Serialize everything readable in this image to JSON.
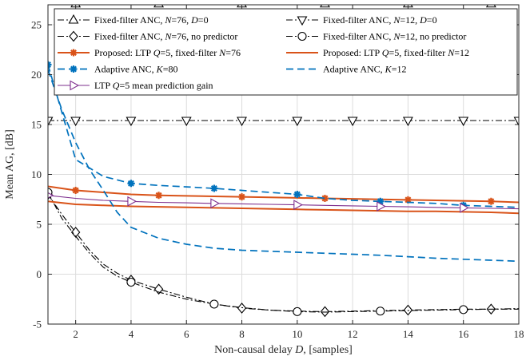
{
  "chart_data": {
    "type": "line",
    "xlabel": "Non-causal delay D, [samples]",
    "ylabel": "Mean AG, [dB]",
    "xlim": [
      1,
      18
    ],
    "ylim": [
      -5,
      27
    ],
    "xticks": [
      2,
      4,
      6,
      8,
      10,
      12,
      14,
      16,
      18
    ],
    "yticks": [
      -5,
      0,
      5,
      10,
      15,
      20,
      25
    ],
    "grid": true,
    "legend_position": "top",
    "series": [
      {
        "name": "Fixed-filter ANC, N=76, D=0",
        "color": "#000000",
        "dash": "dashdot",
        "marker": "triangle-up",
        "x": [
          1,
          18
        ],
        "y": [
          27.1,
          27.1
        ],
        "marker_x": [
          2,
          5,
          8,
          11,
          14,
          17
        ]
      },
      {
        "name": "Fixed-filter ANC,  N=12, D=0",
        "color": "#000000",
        "dash": "dashdot",
        "marker": "triangle-down",
        "x": [
          1,
          18
        ],
        "y": [
          15.4,
          15.4
        ],
        "marker_x": [
          1,
          2,
          4,
          6,
          8,
          10,
          12,
          14,
          16,
          18
        ]
      },
      {
        "name": "Fixed-filter ANC, N=76, no predictor",
        "color": "#000000",
        "dash": "dashdot",
        "marker": "diamond",
        "x": [
          1,
          1.5,
          2,
          2.5,
          3,
          3.5,
          4,
          5,
          6,
          7,
          8,
          9,
          10,
          11,
          12,
          13,
          14,
          15,
          16,
          17,
          18
        ],
        "y": [
          8.0,
          6.0,
          4.2,
          2.4,
          1.0,
          0.1,
          -0.6,
          -1.5,
          -2.3,
          -3.0,
          -3.4,
          -3.6,
          -3.7,
          -3.75,
          -3.7,
          -3.65,
          -3.6,
          -3.55,
          -3.5,
          -3.5,
          -3.45
        ],
        "marker_x": [
          1,
          2,
          4,
          5,
          8,
          11,
          14,
          17
        ]
      },
      {
        "name": "Fixed-filter ANC,  N=12, no predictor",
        "color": "#000000",
        "dash": "dashdot",
        "marker": "circle",
        "x": [
          1,
          1.5,
          2,
          2.5,
          3,
          3.5,
          4,
          5,
          6,
          7,
          8,
          9,
          10,
          11,
          12,
          13,
          14,
          15,
          16,
          17,
          18
        ],
        "y": [
          8.2,
          5.6,
          3.8,
          2.1,
          0.7,
          -0.2,
          -0.8,
          -1.8,
          -2.5,
          -3.0,
          -3.35,
          -3.6,
          -3.75,
          -3.8,
          -3.75,
          -3.7,
          -3.65,
          -3.6,
          -3.55,
          -3.5,
          -3.5
        ],
        "marker_x": [
          1,
          4,
          7,
          10,
          13,
          16
        ]
      },
      {
        "name": "Proposed: LTP Q=5, fixed-filter N=76",
        "color": "#d95319",
        "dash": "solid",
        "marker": "asterisk",
        "x": [
          1,
          2,
          3,
          4,
          5,
          6,
          7,
          8,
          9,
          10,
          11,
          12,
          13,
          14,
          15,
          16,
          17,
          18
        ],
        "y": [
          8.8,
          8.4,
          8.2,
          8.0,
          7.9,
          7.85,
          7.8,
          7.75,
          7.7,
          7.65,
          7.6,
          7.55,
          7.5,
          7.45,
          7.4,
          7.35,
          7.3,
          7.2
        ],
        "marker_x": [
          2,
          5,
          8,
          11,
          14,
          17
        ]
      },
      {
        "name": "Proposed: LTP Q=5, fixed-filter N=12",
        "color": "#d95319",
        "dash": "solid",
        "marker": "none",
        "x": [
          1,
          2,
          3,
          4,
          5,
          6,
          7,
          8,
          9,
          10,
          11,
          12,
          13,
          14,
          15,
          16,
          17,
          18
        ],
        "y": [
          7.3,
          7.0,
          6.9,
          6.8,
          6.75,
          6.7,
          6.65,
          6.6,
          6.55,
          6.5,
          6.45,
          6.4,
          6.35,
          6.3,
          6.3,
          6.25,
          6.2,
          6.1
        ],
        "marker_x": []
      },
      {
        "name": "Adaptive ANC, K=80",
        "color": "#0072bd",
        "dash": "dashed",
        "marker": "asterisk",
        "x": [
          1,
          2,
          3,
          4,
          5,
          6,
          7,
          8,
          9,
          10,
          11,
          12,
          13,
          14,
          15,
          16,
          17,
          18
        ],
        "y": [
          21.0,
          11.5,
          9.8,
          9.1,
          8.9,
          8.75,
          8.6,
          8.4,
          8.2,
          8.0,
          7.6,
          7.4,
          7.3,
          7.2,
          7.1,
          6.9,
          6.8,
          6.7
        ],
        "marker_x": [
          1,
          4,
          7,
          10,
          13,
          16
        ]
      },
      {
        "name": "Adaptive ANC, K=12",
        "color": "#0072bd",
        "dash": "dashed",
        "marker": "none",
        "x": [
          1,
          1.5,
          2,
          2.5,
          3,
          3.5,
          4,
          5,
          6,
          7,
          8,
          9,
          10,
          11,
          12,
          13,
          14,
          15,
          16,
          17,
          18
        ],
        "y": [
          20.5,
          16.5,
          13.2,
          10.5,
          8.4,
          6.2,
          4.7,
          3.6,
          3.0,
          2.6,
          2.4,
          2.3,
          2.2,
          2.1,
          2.0,
          1.9,
          1.75,
          1.6,
          1.5,
          1.4,
          1.3
        ],
        "marker_x": []
      },
      {
        "name": "LTP Q=5 mean prediction gain",
        "color": "#7e2f8e",
        "dash": "solid",
        "marker": "triangle-right",
        "x": [
          1,
          2,
          3,
          4,
          5,
          6,
          7,
          8,
          9,
          10,
          11,
          12,
          13,
          14,
          15,
          16,
          17,
          18
        ],
        "y": [
          7.9,
          7.6,
          7.4,
          7.3,
          7.2,
          7.15,
          7.1,
          7.05,
          7.0,
          6.95,
          6.9,
          6.85,
          6.8,
          6.75,
          6.7,
          6.65,
          6.6,
          6.55
        ],
        "marker_x": [
          1,
          4,
          7,
          10,
          13,
          16
        ]
      }
    ],
    "legend": [
      {
        "series": 0,
        "parts": [
          "Fixed-filter ANC, ",
          "N",
          "=76, ",
          "D",
          "=0"
        ]
      },
      {
        "series": 1,
        "parts": [
          "Fixed-filter ANC,  ",
          "N",
          "=12, ",
          "D",
          "=0"
        ]
      },
      {
        "series": 2,
        "parts": [
          "Fixed-filter ANC, ",
          "N",
          "=76, no predictor"
        ]
      },
      {
        "series": 3,
        "parts": [
          "Fixed-filter ANC, ",
          "N",
          "=12, no predictor"
        ]
      },
      {
        "series": 4,
        "parts": [
          "Proposed: LTP ",
          "Q",
          "=5, fixed-filter ",
          "N",
          "=76"
        ]
      },
      {
        "series": 5,
        "parts": [
          "Proposed: LTP ",
          "Q",
          "=5, fixed-filter ",
          "N",
          "=12"
        ]
      },
      {
        "series": 6,
        "parts": [
          "Adaptive ANC, ",
          "K",
          "=80"
        ]
      },
      {
        "series": 7,
        "parts": [
          "Adaptive ANC, ",
          "K",
          "=12"
        ]
      },
      {
        "series": 8,
        "parts": [
          "LTP ",
          "Q",
          "=5 mean prediction gain"
        ]
      }
    ]
  }
}
